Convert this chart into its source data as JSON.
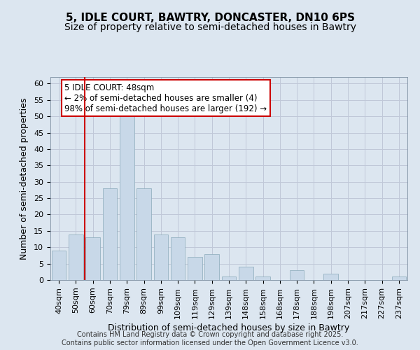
{
  "title1": "5, IDLE COURT, BAWTRY, DONCASTER, DN10 6PS",
  "title2": "Size of property relative to semi-detached houses in Bawtry",
  "xlabel": "Distribution of semi-detached houses by size in Bawtry",
  "ylabel": "Number of semi-detached properties",
  "categories": [
    "40sqm",
    "50sqm",
    "60sqm",
    "70sqm",
    "79sqm",
    "89sqm",
    "99sqm",
    "109sqm",
    "119sqm",
    "129sqm",
    "139sqm",
    "148sqm",
    "158sqm",
    "168sqm",
    "178sqm",
    "188sqm",
    "198sqm",
    "207sqm",
    "217sqm",
    "227sqm",
    "237sqm"
  ],
  "values": [
    9,
    14,
    13,
    28,
    50,
    28,
    14,
    13,
    7,
    8,
    1,
    4,
    1,
    0,
    3,
    0,
    2,
    0,
    0,
    0,
    1
  ],
  "bar_color": "#c8d8e8",
  "bar_edge_color": "#8aaaba",
  "red_line_x": 1.5,
  "red_line_color": "#cc0000",
  "annotation_text": "5 IDLE COURT: 48sqm\n← 2% of semi-detached houses are smaller (4)\n98% of semi-detached houses are larger (192) →",
  "annotation_box_color": "#ffffff",
  "annotation_box_edge_color": "#cc0000",
  "ylim": [
    0,
    62
  ],
  "yticks": [
    0,
    5,
    10,
    15,
    20,
    25,
    30,
    35,
    40,
    45,
    50,
    55,
    60
  ],
  "grid_color": "#c0c8d8",
  "background_color": "#dce6f0",
  "footer_text": "Contains HM Land Registry data © Crown copyright and database right 2025.\nContains public sector information licensed under the Open Government Licence v3.0.",
  "title_fontsize": 11,
  "subtitle_fontsize": 10,
  "xlabel_fontsize": 9,
  "ylabel_fontsize": 9,
  "tick_fontsize": 8,
  "annotation_fontsize": 8.5,
  "footer_fontsize": 7
}
